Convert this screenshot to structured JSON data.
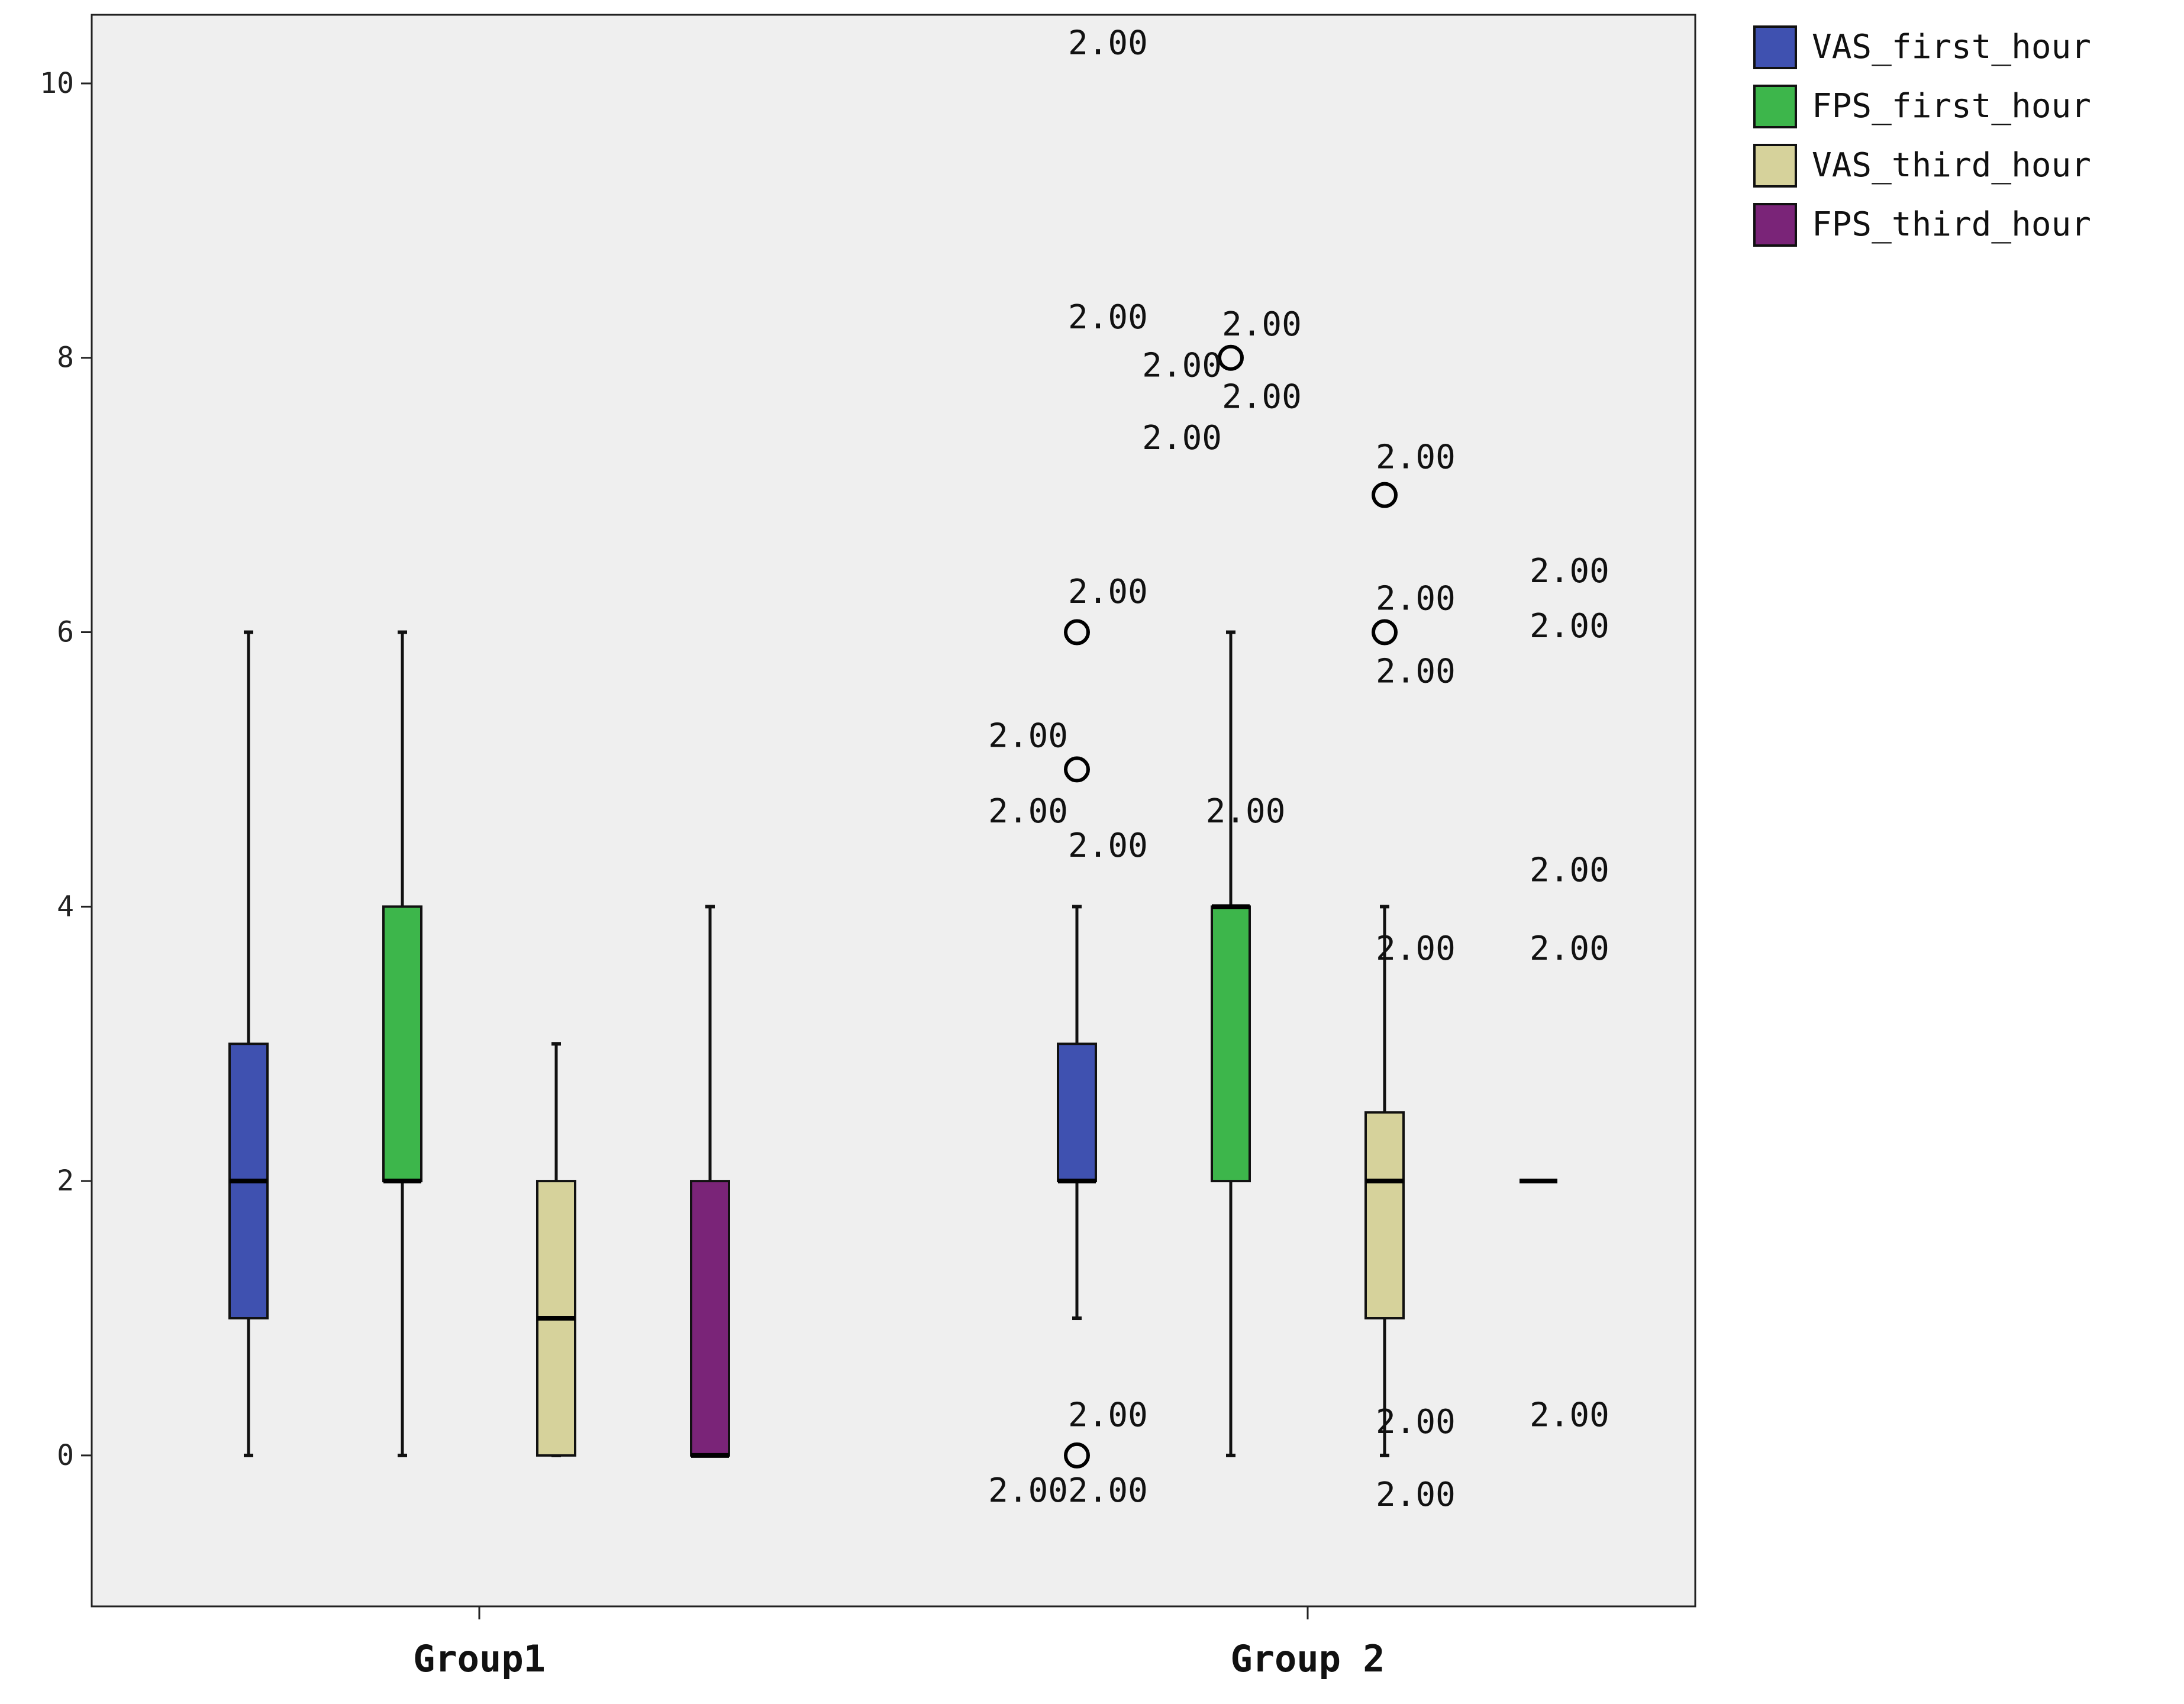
{
  "colors": {
    "plot_background": "#efefef",
    "VAS_first_hour": "#3f51b0",
    "FPS_first_hour": "#3db64b",
    "VAS_third_hour": "#d6d29b",
    "FPS_third_hour": "#7a2478"
  },
  "chart_data": {
    "type": "boxplot",
    "title": "",
    "xlabel": "",
    "ylabel": "",
    "ylim": [
      -1.1,
      10.5
    ],
    "yticks": [
      0,
      2,
      4,
      6,
      8,
      10
    ],
    "categories": [
      "Group1",
      "Group 2"
    ],
    "legend": {
      "position": "top-right-outside",
      "entries": [
        "VAS_first_hour",
        "FPS_first_hour",
        "VAS_third_hour",
        "FPS_third_hour"
      ]
    },
    "series": [
      {
        "name": "VAS_first_hour",
        "boxes": [
          {
            "category": "Group1",
            "min": 0,
            "q1": 1,
            "median": 2,
            "q3": 3,
            "max": 6,
            "outliers": []
          },
          {
            "category": "Group 2",
            "min": 1,
            "q1": 2,
            "median": 2,
            "q3": 3,
            "max": 4,
            "outliers": [
              5,
              6,
              0
            ]
          }
        ]
      },
      {
        "name": "FPS_first_hour",
        "boxes": [
          {
            "category": "Group1",
            "min": 0,
            "q1": 2,
            "median": 2,
            "q3": 4,
            "max": 6,
            "outliers": []
          },
          {
            "category": "Group 2",
            "min": 0,
            "q1": 2,
            "median": 4,
            "q3": 4,
            "max": 6,
            "outliers": [
              8
            ]
          }
        ]
      },
      {
        "name": "VAS_third_hour",
        "boxes": [
          {
            "category": "Group1",
            "min": 0,
            "q1": 0,
            "median": 1,
            "q3": 2,
            "max": 3,
            "outliers": []
          },
          {
            "category": "Group 2",
            "min": 0,
            "q1": 1,
            "median": 2,
            "q3": 2.5,
            "max": 4,
            "outliers": [
              7,
              6
            ]
          }
        ]
      },
      {
        "name": "FPS_third_hour",
        "boxes": [
          {
            "category": "Group1",
            "min": 0,
            "q1": 0,
            "median": 0,
            "q3": 2,
            "max": 4,
            "outliers": []
          },
          {
            "category": "Group 2",
            "min": 2,
            "q1": 2,
            "median": 2,
            "q3": 2,
            "max": 2,
            "outliers": []
          }
        ]
      }
    ],
    "annotations": [
      {
        "text": "2.00",
        "series": "VAS_first_hour",
        "category": "Group 2",
        "y": 10.3,
        "side": "right"
      },
      {
        "text": "2.00",
        "series": "VAS_first_hour",
        "category": "Group 2",
        "y": 8.3,
        "side": "right"
      },
      {
        "text": "2.00",
        "series": "VAS_first_hour",
        "category": "Group 2",
        "y": 6.3,
        "side": "right"
      },
      {
        "text": "2.00",
        "series": "VAS_first_hour",
        "category": "Group 2",
        "y": 5.25,
        "side": "left"
      },
      {
        "text": "2.00",
        "series": "VAS_first_hour",
        "category": "Group 2",
        "y": 4.7,
        "side": "left"
      },
      {
        "text": "2.00",
        "series": "VAS_first_hour",
        "category": "Group 2",
        "y": 4.45,
        "side": "right"
      },
      {
        "text": "2.00",
        "series": "VAS_first_hour",
        "category": "Group 2",
        "y": 0.3,
        "side": "right"
      },
      {
        "text": "2.00",
        "series": "VAS_first_hour",
        "category": "Group 2",
        "y": -0.25,
        "side": "left"
      },
      {
        "text": "2.00",
        "series": "VAS_first_hour",
        "category": "Group 2",
        "y": -0.25,
        "side": "right"
      },
      {
        "text": "2.00",
        "series": "FPS_first_hour",
        "category": "Group 2",
        "y": 8.25,
        "side": "right"
      },
      {
        "text": "2.00",
        "series": "FPS_first_hour",
        "category": "Group 2",
        "y": 7.95,
        "side": "left"
      },
      {
        "text": "2.00",
        "series": "FPS_first_hour",
        "category": "Group 2",
        "y": 7.72,
        "side": "right"
      },
      {
        "text": "2.00",
        "series": "FPS_first_hour",
        "category": "Group 2",
        "y": 7.42,
        "side": "left"
      },
      {
        "text": "2.00",
        "series": "FPS_first_hour",
        "category": "Group 2",
        "y": 4.7,
        "side": "center"
      },
      {
        "text": "2.00",
        "series": "VAS_third_hour",
        "category": "Group 2",
        "y": 7.28,
        "side": "right"
      },
      {
        "text": "2.00",
        "series": "VAS_third_hour",
        "category": "Group 2",
        "y": 6.25,
        "side": "right"
      },
      {
        "text": "2.00",
        "series": "VAS_third_hour",
        "category": "Group 2",
        "y": 5.72,
        "side": "right"
      },
      {
        "text": "2.00",
        "series": "VAS_third_hour",
        "category": "Group 2",
        "y": 3.7,
        "side": "right"
      },
      {
        "text": "2.00",
        "series": "VAS_third_hour",
        "category": "Group 2",
        "y": 0.25,
        "side": "right"
      },
      {
        "text": "2.00",
        "series": "VAS_third_hour",
        "category": "Group 2",
        "y": -0.28,
        "side": "right"
      },
      {
        "text": "2.00",
        "series": "FPS_third_hour",
        "category": "Group 2",
        "y": 6.45,
        "side": "right"
      },
      {
        "text": "2.00",
        "series": "FPS_third_hour",
        "category": "Group 2",
        "y": 6.05,
        "side": "right"
      },
      {
        "text": "2.00",
        "series": "FPS_third_hour",
        "category": "Group 2",
        "y": 4.27,
        "side": "right"
      },
      {
        "text": "2.00",
        "series": "FPS_third_hour",
        "category": "Group 2",
        "y": 3.7,
        "side": "right"
      },
      {
        "text": "2.00",
        "series": "FPS_third_hour",
        "category": "Group 2",
        "y": 0.3,
        "side": "right"
      }
    ]
  }
}
